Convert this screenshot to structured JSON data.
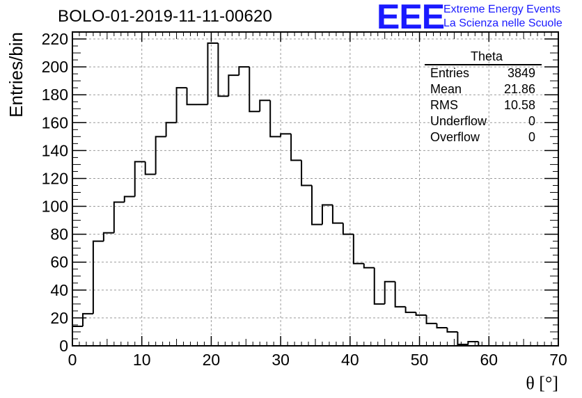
{
  "title": "BOLO-01-2019-11-11-00620",
  "logo": {
    "letters": "EEE",
    "line1": "Extreme Energy Events",
    "line2": "La Scienza nelle Scuole",
    "color": "#1a1aff"
  },
  "stats_box": {
    "name": "Theta",
    "rows": [
      {
        "label": "Entries",
        "value": "3849"
      },
      {
        "label": "Mean",
        "value": "21.86"
      },
      {
        "label": "RMS",
        "value": "10.58"
      },
      {
        "label": "Underflow",
        "value": "0"
      },
      {
        "label": "Overflow",
        "value": "0"
      }
    ]
  },
  "chart_data": {
    "type": "histogram",
    "title": "BOLO-01-2019-11-11-00620",
    "xlabel": "θ [°]",
    "ylabel": "Entries/bin",
    "xlim": [
      0,
      70
    ],
    "ylim": [
      0,
      225
    ],
    "bin_width": 1.5,
    "bin_edges_start": 0,
    "values": [
      14,
      23,
      75,
      81,
      103,
      107,
      132,
      123,
      150,
      160,
      185,
      173,
      173,
      217,
      179,
      194,
      200,
      168,
      176,
      150,
      152,
      133,
      115,
      87,
      101,
      88,
      80,
      59,
      56,
      30,
      46,
      28,
      24,
      22,
      16,
      13,
      10,
      1,
      3,
      0
    ],
    "x_ticks": [
      "0",
      "10",
      "20",
      "30",
      "40",
      "50",
      "60",
      "70"
    ],
    "y_ticks": [
      "0",
      "20",
      "40",
      "60",
      "80",
      "100",
      "120",
      "140",
      "160",
      "180",
      "200",
      "220"
    ],
    "grid": true,
    "line_color": "#000000"
  }
}
